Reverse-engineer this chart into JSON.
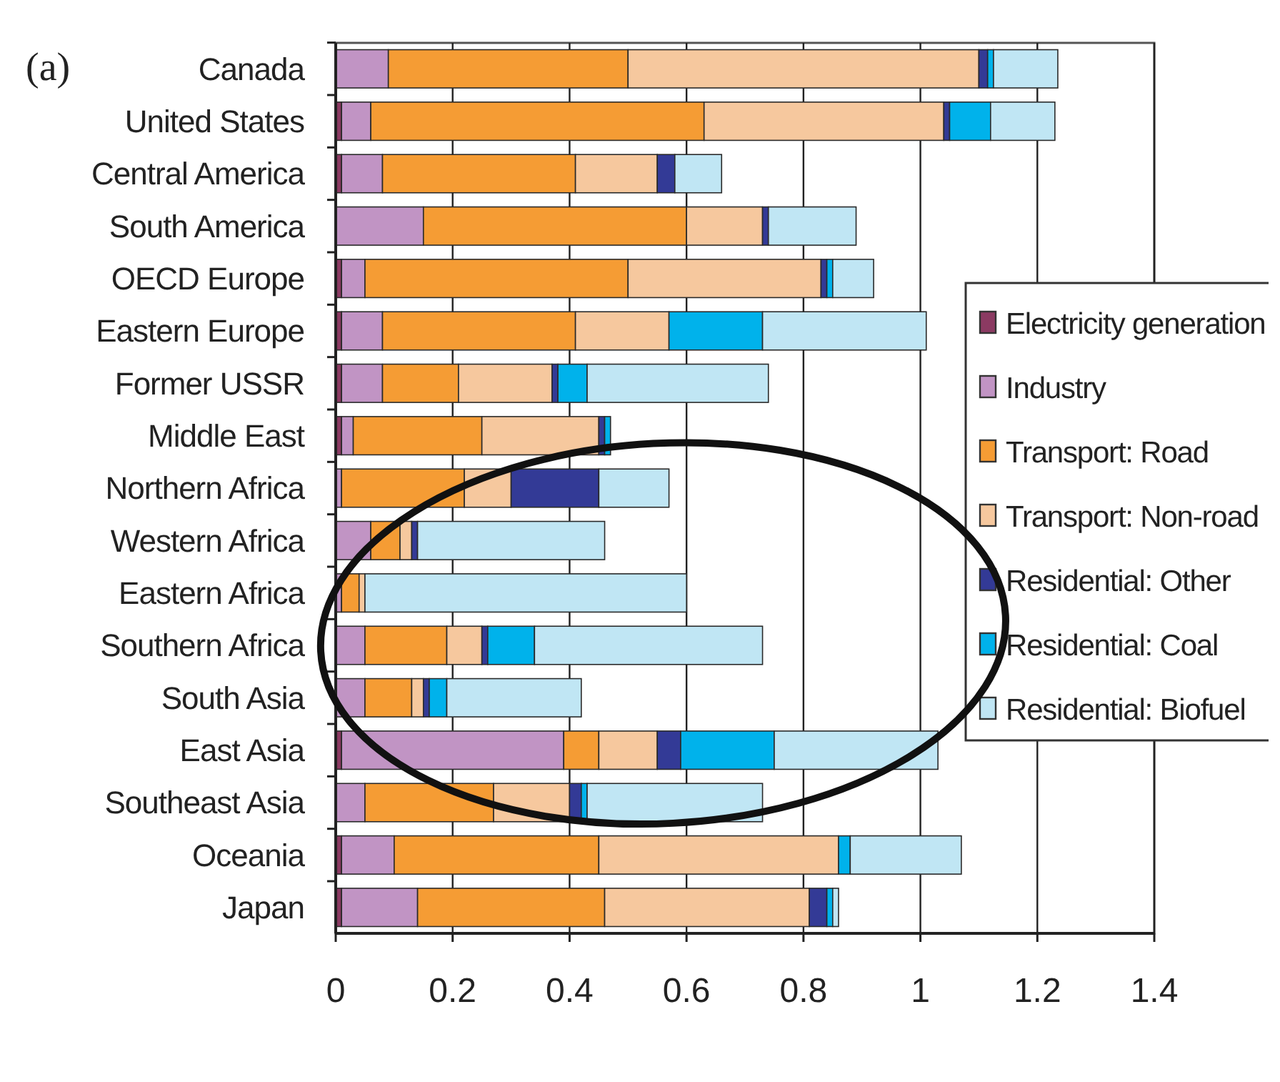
{
  "chart_data": {
    "type": "bar",
    "orientation": "horizontal",
    "stacked": true,
    "categories": [
      "Canada",
      "United States",
      "Central America",
      "South America",
      "OECD Europe",
      "Eastern Europe",
      "Former USSR",
      "Middle East",
      "Northern Africa",
      "Western Africa",
      "Eastern Africa",
      "Southern Africa",
      "South Asia",
      "East Asia",
      "Southeast Asia",
      "Oceania",
      "Japan"
    ],
    "series": [
      {
        "name": "Electricity generation",
        "color": "#8b3a62",
        "values": [
          0,
          0.01,
          0.01,
          0,
          0.01,
          0.01,
          0.01,
          0.01,
          0,
          0,
          0,
          0,
          0,
          0.01,
          0,
          0.01,
          0.01
        ]
      },
      {
        "name": "Industry",
        "color": "#c194c4",
        "values": [
          0.09,
          0.05,
          0.07,
          0.15,
          0.04,
          0.07,
          0.07,
          0.02,
          0.01,
          0.06,
          0.01,
          0.05,
          0.05,
          0.38,
          0.05,
          0.09,
          0.13
        ]
      },
      {
        "name": "Transport: Road",
        "color": "#f59c34",
        "values": [
          0.41,
          0.57,
          0.33,
          0.45,
          0.45,
          0.33,
          0.13,
          0.22,
          0.21,
          0.05,
          0.03,
          0.14,
          0.08,
          0.06,
          0.22,
          0.35,
          0.32
        ]
      },
      {
        "name": "Transport: Non-road",
        "color": "#f6c89e",
        "values": [
          0.6,
          0.41,
          0.14,
          0.13,
          0.33,
          0.16,
          0.16,
          0.2,
          0.08,
          0.02,
          0.01,
          0.06,
          0.02,
          0.1,
          0.13,
          0.41,
          0.35
        ]
      },
      {
        "name": "Residential: Other",
        "color": "#333a96",
        "values": [
          0.015,
          0.01,
          0.03,
          0.01,
          0.01,
          0,
          0.01,
          0.01,
          0.15,
          0.01,
          0,
          0.01,
          0.01,
          0.04,
          0.02,
          0,
          0.03
        ]
      },
      {
        "name": "Residential: Coal",
        "color": "#00b2eb",
        "values": [
          0.01,
          0.07,
          0,
          0,
          0.01,
          0.16,
          0.05,
          0.01,
          0,
          0,
          0,
          0.08,
          0.03,
          0.16,
          0.01,
          0.02,
          0.01
        ]
      },
      {
        "name": "Residential: Biofuel",
        "color": "#c0e6f4",
        "values": [
          0.11,
          0.11,
          0.08,
          0.15,
          0.07,
          0.28,
          0.31,
          0,
          0.12,
          0.32,
          0.55,
          0.39,
          0.23,
          0.28,
          0.3,
          0.19,
          0.01
        ]
      }
    ],
    "xlim": [
      0,
      1.4
    ],
    "xticks": [
      0,
      0.2,
      0.4,
      0.6,
      0.8,
      1,
      1.2,
      1.4
    ],
    "grid": "x",
    "legend": "right",
    "annotations": [
      "(a)"
    ]
  }
}
